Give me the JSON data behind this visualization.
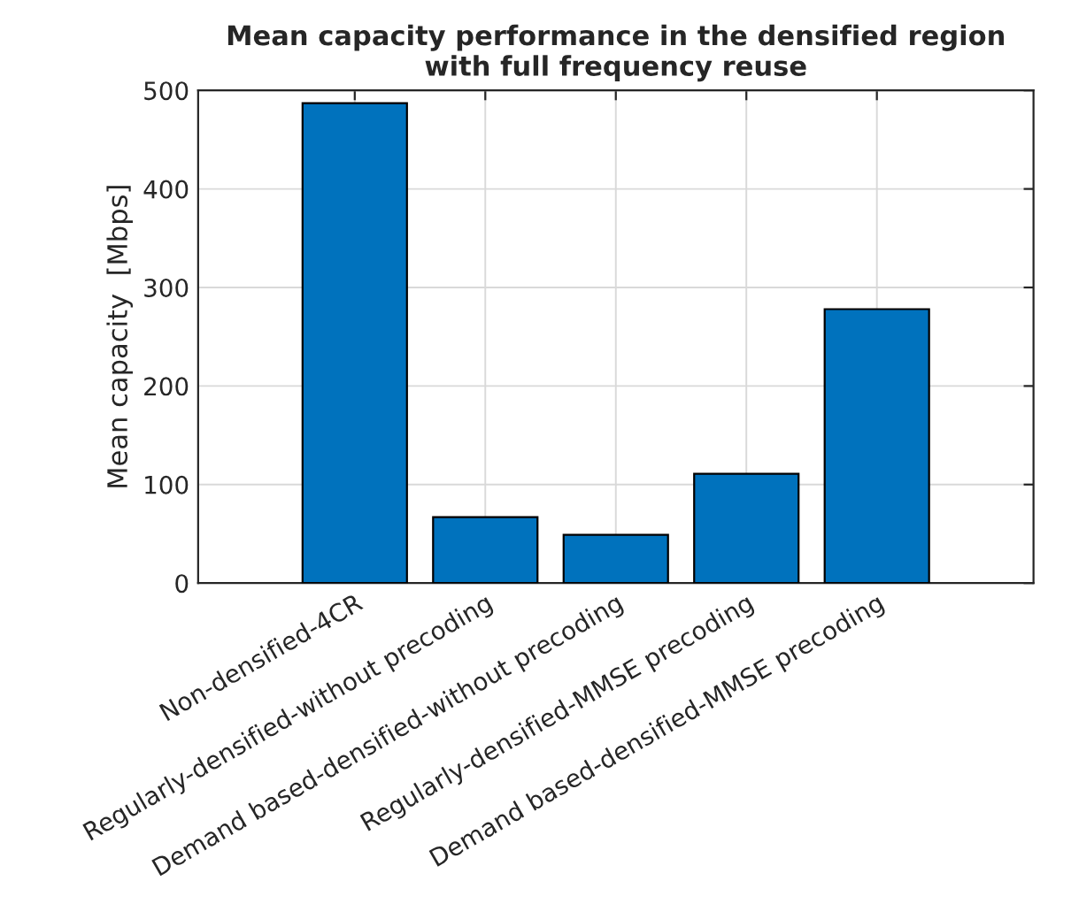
{
  "chart_data": {
    "type": "bar",
    "title": "Mean capacity performance in the densified region\nwith full frequency reuse",
    "ylabel": "Mean capacity  [Mbps]",
    "categories": [
      "Non-densified-4CR",
      "Regularly-densified-without precoding",
      "Demand based-densified-without precoding",
      "Regularly-densified-MMSE precoding",
      "Demand based-densified-MMSE precoding"
    ],
    "values": [
      487,
      67,
      49,
      111,
      278
    ],
    "color": "#0072bd",
    "ylim": [
      0,
      500
    ],
    "yticks": [
      0,
      100,
      200,
      300,
      400,
      500
    ],
    "grid": true
  }
}
